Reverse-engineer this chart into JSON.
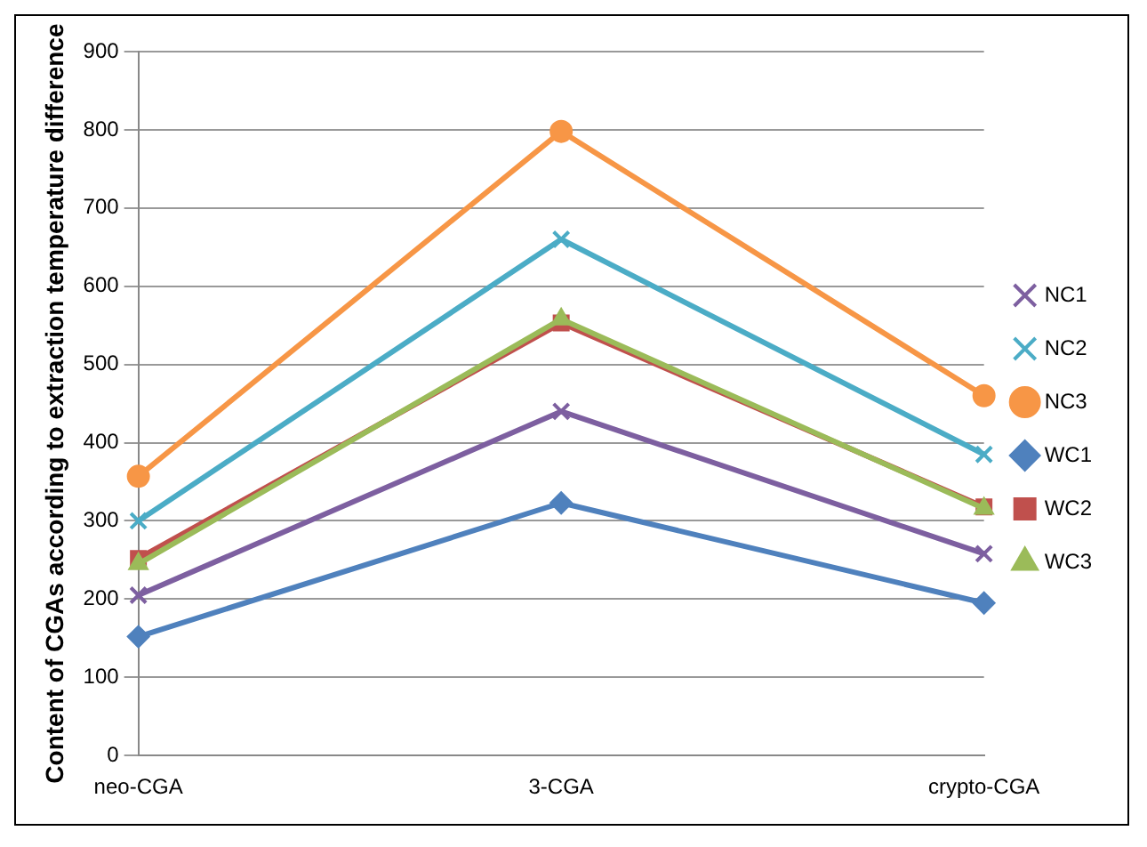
{
  "chart_data": {
    "type": "line",
    "ylabel": "Content of CGAs according to extraction temperature difference",
    "categories": [
      "neo-CGA",
      "3-CGA",
      "crypto-CGA"
    ],
    "series": [
      {
        "name": "NC1",
        "color": "#7d5fa0",
        "marker": "cross",
        "values": [
          205,
          440,
          258
        ]
      },
      {
        "name": "NC2",
        "color": "#4bacc6",
        "marker": "cross",
        "values": [
          300,
          660,
          385
        ]
      },
      {
        "name": "NC3",
        "color": "#f79646",
        "marker": "circle",
        "values": [
          357,
          798,
          460
        ]
      },
      {
        "name": "WC1",
        "color": "#4f81bd",
        "marker": "diamond",
        "values": [
          152,
          323,
          195
        ]
      },
      {
        "name": "WC2",
        "color": "#c0504d",
        "marker": "square",
        "values": [
          252,
          553,
          318
        ]
      },
      {
        "name": "WC3",
        "color": "#9bbb59",
        "marker": "triangle",
        "values": [
          245,
          558,
          316
        ]
      }
    ],
    "ylim": [
      0,
      900
    ],
    "yticks": [
      0,
      100,
      200,
      300,
      400,
      500,
      600,
      700,
      800,
      900
    ],
    "grid": "y",
    "legend": "right"
  }
}
